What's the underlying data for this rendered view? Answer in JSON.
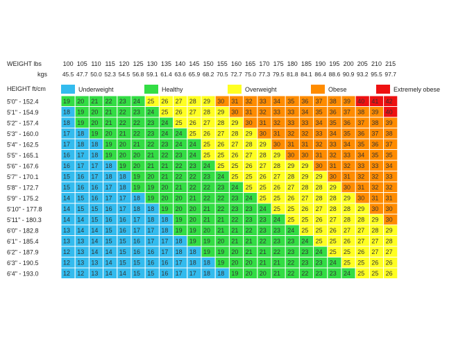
{
  "chart_data": {
    "type": "heatmap",
    "title": "",
    "header": {
      "weight_label": "WEIGHT lbs",
      "kgs_label": "kgs",
      "height_label": "HEIGHT ft/cm"
    },
    "weights_lbs": [
      "100",
      "105",
      "110",
      "115",
      "120",
      "125",
      "130",
      "135",
      "140",
      "145",
      "150",
      "155",
      "160",
      "165",
      "170",
      "175",
      "180",
      "185",
      "190",
      "195",
      "200",
      "205",
      "210",
      "215"
    ],
    "weights_kg": [
      "45.5",
      "47.7",
      "50.0",
      "52.3",
      "54.5",
      "56.8",
      "59.1",
      "61.4",
      "63.6",
      "65.9",
      "68.2",
      "70.5",
      "72.7",
      "75.0",
      "77.3",
      "79.5",
      "81.8",
      "84.1",
      "86.4",
      "88.6",
      "90.9",
      "93.2",
      "95.5",
      "97.7"
    ],
    "heights": [
      "5'0\" - 152.4",
      "5'1\" - 154.9",
      "5'2\" - 157.4",
      "5'3\" - 160.0",
      "5'4\" - 162.5",
      "5'5\" - 165.1",
      "5'6\" - 167.6",
      "5'7\" - 170.1",
      "5'8\" - 172.7",
      "5'9\" - 175.2",
      "5'10\" - 177.8",
      "5'11\" - 180.3",
      "6'0\" - 182.8",
      "6'1\" - 185.4",
      "6'2\" - 187.9",
      "6'3\" - 190.5",
      "6'4\" - 193.0"
    ],
    "legend": [
      {
        "key": "under",
        "label": "Underweight",
        "color": "#33bbee"
      },
      {
        "key": "healthy",
        "label": "Healthy",
        "color": "#33dd44"
      },
      {
        "key": "over",
        "label": "Overweight",
        "color": "#ffff22"
      },
      {
        "key": "obese",
        "label": "Obese",
        "color": "#ff8c00"
      },
      {
        "key": "extreme",
        "label": "Extremely obese",
        "color": "#ee1111"
      }
    ],
    "bmi_values": [
      [
        19,
        20,
        21,
        22,
        23,
        24,
        25,
        26,
        27,
        28,
        29,
        30,
        31,
        32,
        33,
        34,
        35,
        36,
        37,
        38,
        39,
        40,
        41,
        42
      ],
      [
        18,
        19,
        20,
        21,
        22,
        23,
        24,
        25,
        26,
        27,
        28,
        29,
        30,
        31,
        32,
        33,
        33,
        34,
        35,
        36,
        37,
        38,
        39,
        40
      ],
      [
        18,
        19,
        20,
        21,
        22,
        22,
        23,
        24,
        25,
        26,
        27,
        28,
        29,
        30,
        31,
        32,
        33,
        33,
        34,
        35,
        36,
        37,
        38,
        39
      ],
      [
        17,
        18,
        19,
        20,
        21,
        22,
        23,
        24,
        24,
        25,
        26,
        27,
        28,
        29,
        30,
        31,
        32,
        32,
        33,
        34,
        35,
        36,
        37,
        38
      ],
      [
        17,
        18,
        18,
        19,
        20,
        21,
        22,
        23,
        24,
        24,
        25,
        26,
        27,
        28,
        29,
        30,
        31,
        31,
        32,
        33,
        34,
        35,
        36,
        37
      ],
      [
        16,
        17,
        18,
        19,
        20,
        20,
        21,
        22,
        23,
        24,
        25,
        25,
        26,
        27,
        28,
        29,
        30,
        30,
        31,
        32,
        33,
        34,
        35,
        35
      ],
      [
        16,
        17,
        17,
        18,
        19,
        20,
        21,
        21,
        22,
        23,
        24,
        25,
        25,
        26,
        27,
        28,
        29,
        29,
        30,
        31,
        32,
        33,
        33,
        34
      ],
      [
        15,
        16,
        17,
        18,
        18,
        19,
        20,
        21,
        22,
        22,
        23,
        24,
        25,
        25,
        26,
        27,
        28,
        29,
        29,
        30,
        31,
        32,
        32,
        33
      ],
      [
        15,
        16,
        16,
        17,
        18,
        19,
        19,
        20,
        21,
        22,
        22,
        23,
        24,
        25,
        25,
        26,
        27,
        28,
        28,
        29,
        30,
        31,
        32,
        32
      ],
      [
        14,
        15,
        16,
        17,
        17,
        18,
        19,
        20,
        20,
        21,
        22,
        22,
        23,
        24,
        25,
        25,
        26,
        27,
        28,
        28,
        29,
        30,
        31,
        31
      ],
      [
        14,
        15,
        15,
        16,
        17,
        18,
        18,
        19,
        20,
        20,
        21,
        22,
        23,
        23,
        24,
        25,
        25,
        26,
        27,
        28,
        28,
        29,
        30,
        30
      ],
      [
        14,
        14,
        15,
        16,
        16,
        17,
        18,
        18,
        19,
        20,
        21,
        21,
        22,
        23,
        23,
        24,
        25,
        25,
        26,
        27,
        28,
        28,
        29,
        30
      ],
      [
        13,
        14,
        14,
        15,
        16,
        17,
        17,
        18,
        19,
        19,
        20,
        21,
        21,
        22,
        23,
        23,
        24,
        25,
        25,
        26,
        27,
        27,
        28,
        29
      ],
      [
        13,
        13,
        14,
        15,
        15,
        16,
        17,
        17,
        18,
        19,
        19,
        20,
        21,
        21,
        22,
        23,
        23,
        24,
        25,
        25,
        26,
        27,
        27,
        28
      ],
      [
        12,
        13,
        14,
        14,
        15,
        16,
        16,
        17,
        18,
        18,
        19,
        19,
        20,
        21,
        21,
        22,
        23,
        23,
        24,
        25,
        25,
        26,
        27,
        27
      ],
      [
        12,
        13,
        13,
        14,
        15,
        15,
        16,
        16,
        17,
        18,
        18,
        19,
        20,
        20,
        21,
        21,
        22,
        23,
        23,
        24,
        25,
        25,
        26,
        26
      ],
      [
        12,
        12,
        13,
        14,
        14,
        15,
        15,
        16,
        17,
        17,
        18,
        18,
        19,
        20,
        20,
        21,
        22,
        22,
        23,
        23,
        24,
        25,
        25,
        26
      ]
    ]
  }
}
